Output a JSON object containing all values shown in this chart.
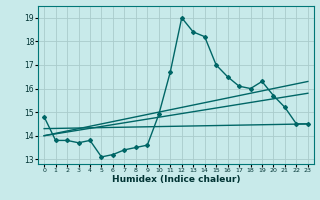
{
  "xlabel": "Humidex (Indice chaleur)",
  "bg_color": "#c8eaea",
  "grid_color": "#aacccc",
  "line_color": "#006666",
  "xlim": [
    -0.5,
    23.5
  ],
  "ylim": [
    12.8,
    19.5
  ],
  "yticks": [
    13,
    14,
    15,
    16,
    17,
    18,
    19
  ],
  "xticks": [
    0,
    1,
    2,
    3,
    4,
    5,
    6,
    7,
    8,
    9,
    10,
    11,
    12,
    13,
    14,
    15,
    16,
    17,
    18,
    19,
    20,
    21,
    22,
    23
  ],
  "line1": [
    14.8,
    13.8,
    13.8,
    13.7,
    13.8,
    13.1,
    13.2,
    13.4,
    13.5,
    13.6,
    14.9,
    16.7,
    19.0,
    18.4,
    18.2,
    17.0,
    16.5,
    16.1,
    16.0,
    16.3,
    15.7,
    15.2,
    14.5,
    14.5
  ],
  "line2_x": [
    0,
    23
  ],
  "line2_y": [
    14.3,
    14.5
  ],
  "line3_x": [
    0,
    23
  ],
  "line3_y": [
    14.0,
    15.8
  ],
  "line4_x": [
    0,
    23
  ],
  "line4_y": [
    14.0,
    16.3
  ]
}
